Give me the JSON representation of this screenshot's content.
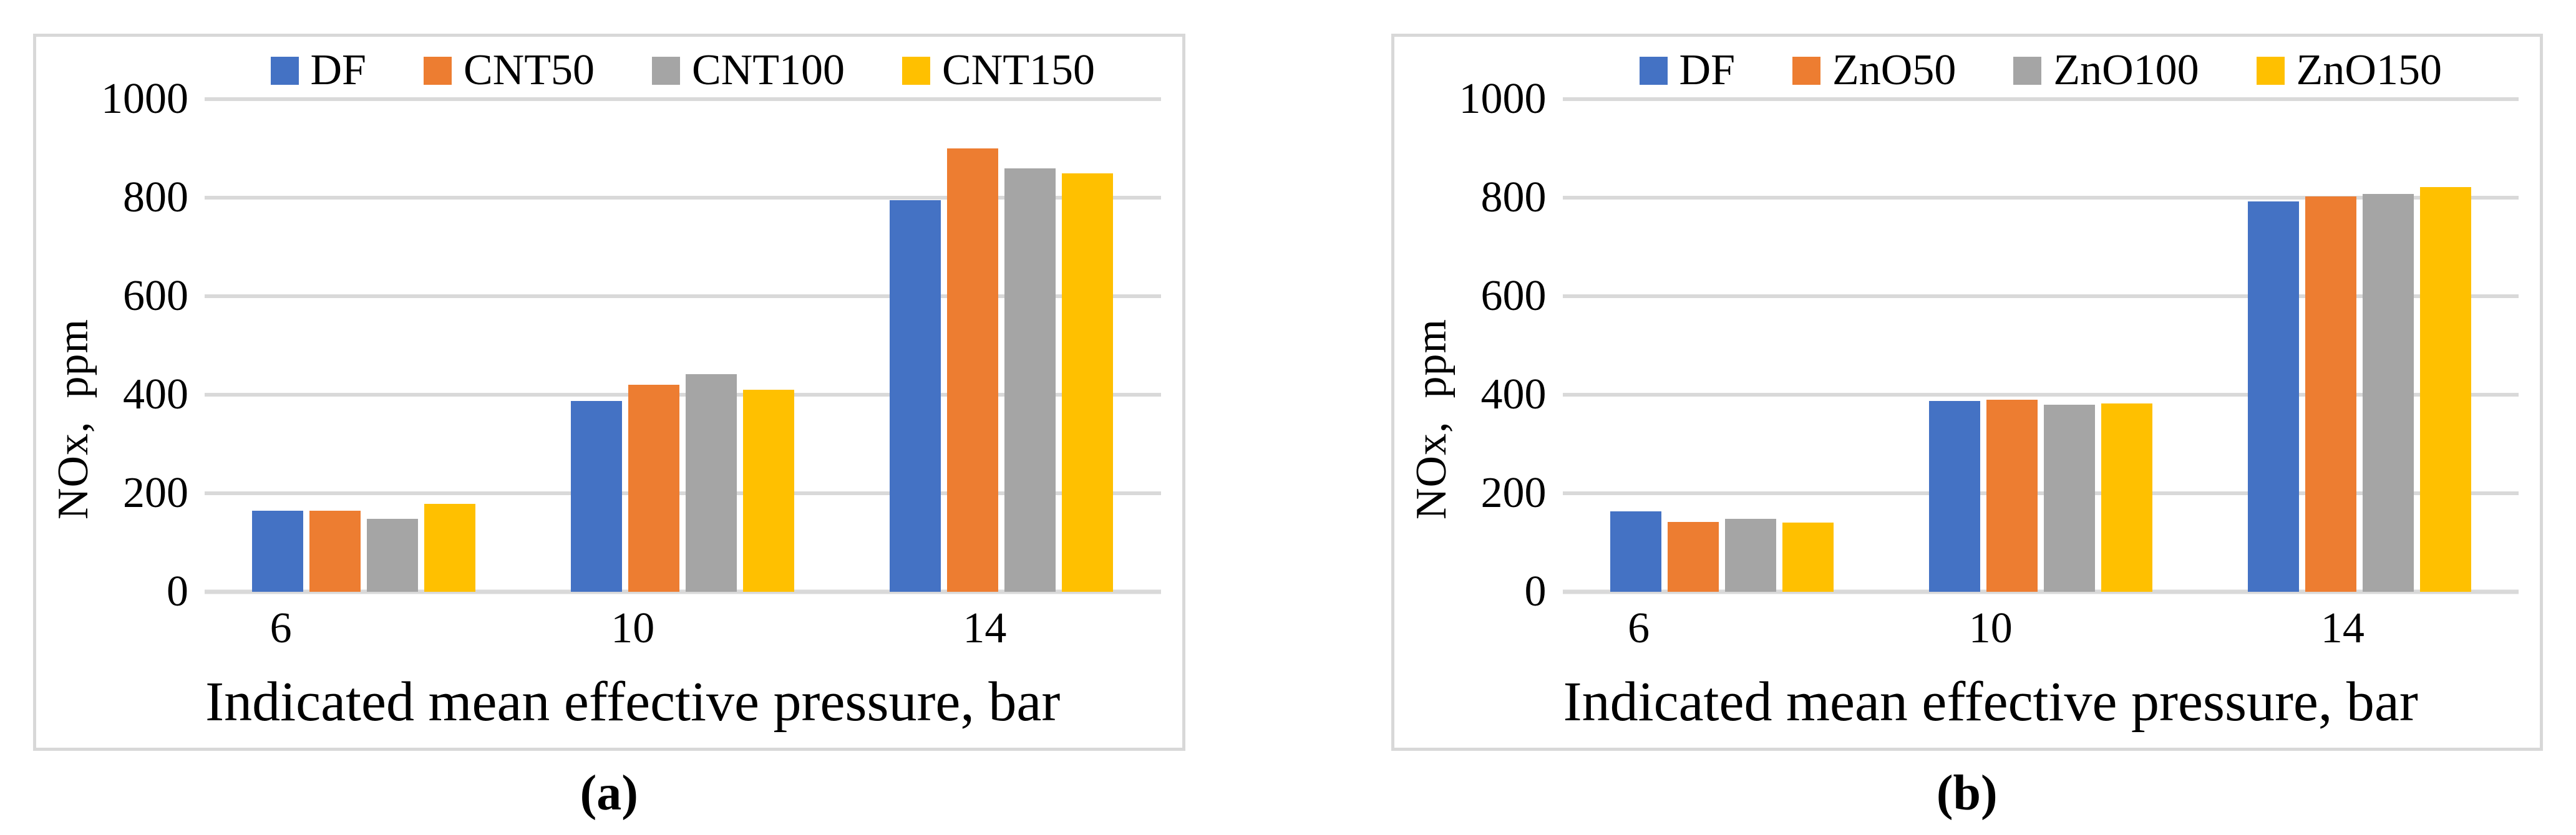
{
  "figure": {
    "background": "#ffffff",
    "frame_border_color": "#D8D8D8",
    "gridline_color": "#D9D9D9",
    "text_color": "#000000"
  },
  "chart_data": [
    {
      "id": "a",
      "type": "bar",
      "caption": "(a)",
      "title": "",
      "xlabel": "Indicated mean effective pressure, bar",
      "ylabel": "NOx,  ppm",
      "categories": [
        "6",
        "10",
        "14"
      ],
      "series": [
        {
          "name": "DF",
          "color": "#4472C4",
          "values": [
            165,
            387,
            795
          ]
        },
        {
          "name": "CNT50",
          "color": "#ED7D31",
          "values": [
            165,
            420,
            900
          ]
        },
        {
          "name": "CNT100",
          "color": "#A5A5A5",
          "values": [
            148,
            442,
            860
          ]
        },
        {
          "name": "CNT150",
          "color": "#FFC000",
          "values": [
            178,
            410,
            850
          ]
        }
      ],
      "ylim": [
        0,
        1000
      ],
      "yticks": [
        0,
        200,
        400,
        600,
        800,
        1000
      ],
      "grid": true,
      "legend_position": "top"
    },
    {
      "id": "b",
      "type": "bar",
      "caption": "(b)",
      "title": "",
      "xlabel": "Indicated mean effective pressure, bar",
      "ylabel": "NOx,  ppm",
      "categories": [
        "6",
        "10",
        "14"
      ],
      "series": [
        {
          "name": "DF",
          "color": "#4472C4",
          "values": [
            163,
            387,
            793
          ]
        },
        {
          "name": "ZnO50",
          "color": "#ED7D31",
          "values": [
            142,
            390,
            803
          ]
        },
        {
          "name": "ZnO100",
          "color": "#A5A5A5",
          "values": [
            148,
            380,
            808
          ]
        },
        {
          "name": "ZnO150",
          "color": "#FFC000",
          "values": [
            140,
            382,
            822
          ]
        }
      ],
      "ylim": [
        0,
        1000
      ],
      "yticks": [
        0,
        200,
        400,
        600,
        800,
        1000
      ],
      "grid": true,
      "legend_position": "top"
    }
  ]
}
